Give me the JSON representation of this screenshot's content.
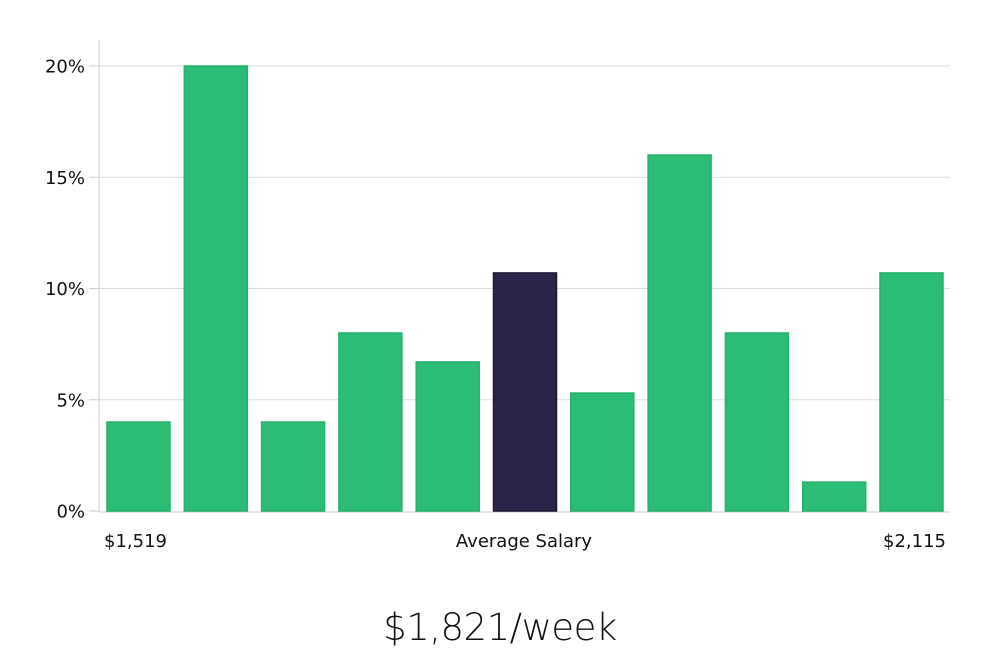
{
  "chart_data": {
    "type": "bar",
    "title": "",
    "xlabel": "Average Salary",
    "ylabel": "",
    "x_range_labels": [
      "$1,519",
      "$2,115"
    ],
    "categories": [
      "bin1",
      "bin2",
      "bin3",
      "bin4",
      "bin5",
      "bin6",
      "bin7",
      "bin8",
      "bin9",
      "bin10",
      "bin11"
    ],
    "values": [
      4.0,
      20.0,
      4.0,
      8.0,
      6.7,
      10.7,
      5.3,
      16.0,
      8.0,
      1.3,
      10.7
    ],
    "highlight_index": 5,
    "y_ticks": [
      0,
      5,
      10,
      15,
      20
    ],
    "y_tick_labels": [
      "0%",
      "5%",
      "10%",
      "15%",
      "20%"
    ],
    "ylim": [
      0,
      21
    ],
    "grid": true,
    "legend": null,
    "colors": {
      "bar": "#2bbd76",
      "bar_border": "#25b06c",
      "highlight": "#28244a",
      "grid": "#dddddd",
      "axis": "#cccccc"
    }
  },
  "footer": {
    "salary_text": "$1,821/week"
  }
}
